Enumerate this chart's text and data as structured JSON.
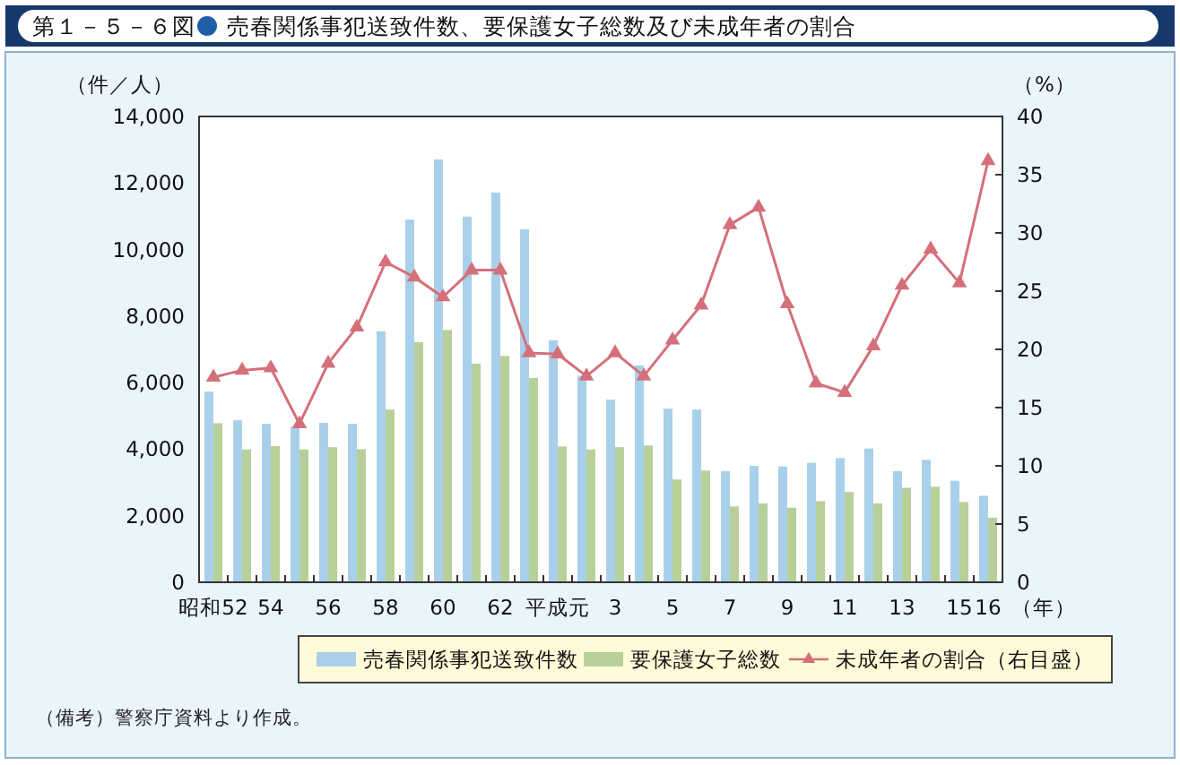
{
  "chart_data": {
    "type": "bar",
    "title": "第１－５－６図",
    "subtitle": "売春関係事犯送致件数、要保護女子総数及び未成年者の割合",
    "ylabel": "（件／人）",
    "y2label": "（%）",
    "xlabel": "（年）",
    "annotations": [
      "（備考）警察庁資料より作成。"
    ],
    "categories": [
      "昭和52",
      null,
      "54",
      null,
      "56",
      null,
      "58",
      null,
      "60",
      null,
      "62",
      null,
      "平成元",
      null,
      "3",
      null,
      "5",
      null,
      "7",
      null,
      "9",
      null,
      "11",
      null,
      "13",
      null,
      "15",
      "16"
    ],
    "series": [
      {
        "name": "売春関係事犯送致件数",
        "type": "bar",
        "color": "#a9d0ea",
        "values": [
          5730,
          4870,
          4760,
          4670,
          4790,
          4760,
          7540,
          10900,
          12710,
          10990,
          11710,
          10610,
          7270,
          6210,
          5490,
          6520,
          5220,
          5190,
          3340,
          3500,
          3480,
          3590,
          3730,
          4020,
          3340,
          3680,
          3050,
          2600
        ]
      },
      {
        "name": "要保護女子総数",
        "type": "bar",
        "color": "#b7d09a",
        "values": [
          4780,
          3990,
          4090,
          3990,
          4060,
          4000,
          5190,
          7220,
          7580,
          6570,
          6800,
          6140,
          4080,
          3990,
          4060,
          4110,
          3090,
          3360,
          2280,
          2370,
          2240,
          2440,
          2710,
          2370,
          2840,
          2870,
          2410,
          1940
        ]
      },
      {
        "name": "未成年者の割合（右目盛）",
        "type": "line",
        "axis": "y2",
        "color": "#d4707a",
        "values": [
          17.6,
          18.2,
          18.4,
          13.6,
          18.8,
          21.9,
          27.5,
          26.2,
          24.5,
          26.8,
          26.8,
          19.7,
          19.6,
          17.7,
          19.7,
          17.7,
          20.8,
          23.8,
          30.7,
          32.2,
          23.9,
          17.1,
          16.3,
          20.3,
          25.5,
          28.6,
          25.7,
          36.2
        ]
      }
    ],
    "ylim": [
      0,
      14000
    ],
    "yticks": [
      0,
      {
        "value": 2000,
        "label": "2,000"
      },
      {
        "value": 4000,
        "label": "4,000"
      },
      {
        "value": 6000,
        "label": "6,000"
      },
      {
        "value": 8000,
        "label": "8,000"
      },
      {
        "value": 10000,
        "label": "10,000"
      },
      {
        "value": 12000,
        "label": "12,000"
      },
      {
        "value": 14000,
        "label": "14,000"
      }
    ],
    "y2lim": [
      0,
      40
    ],
    "y2ticks": [
      0,
      5,
      10,
      15,
      20,
      25,
      30,
      35,
      40
    ],
    "legend": "bottom",
    "marker": "triangle",
    "line_style": "solid"
  }
}
